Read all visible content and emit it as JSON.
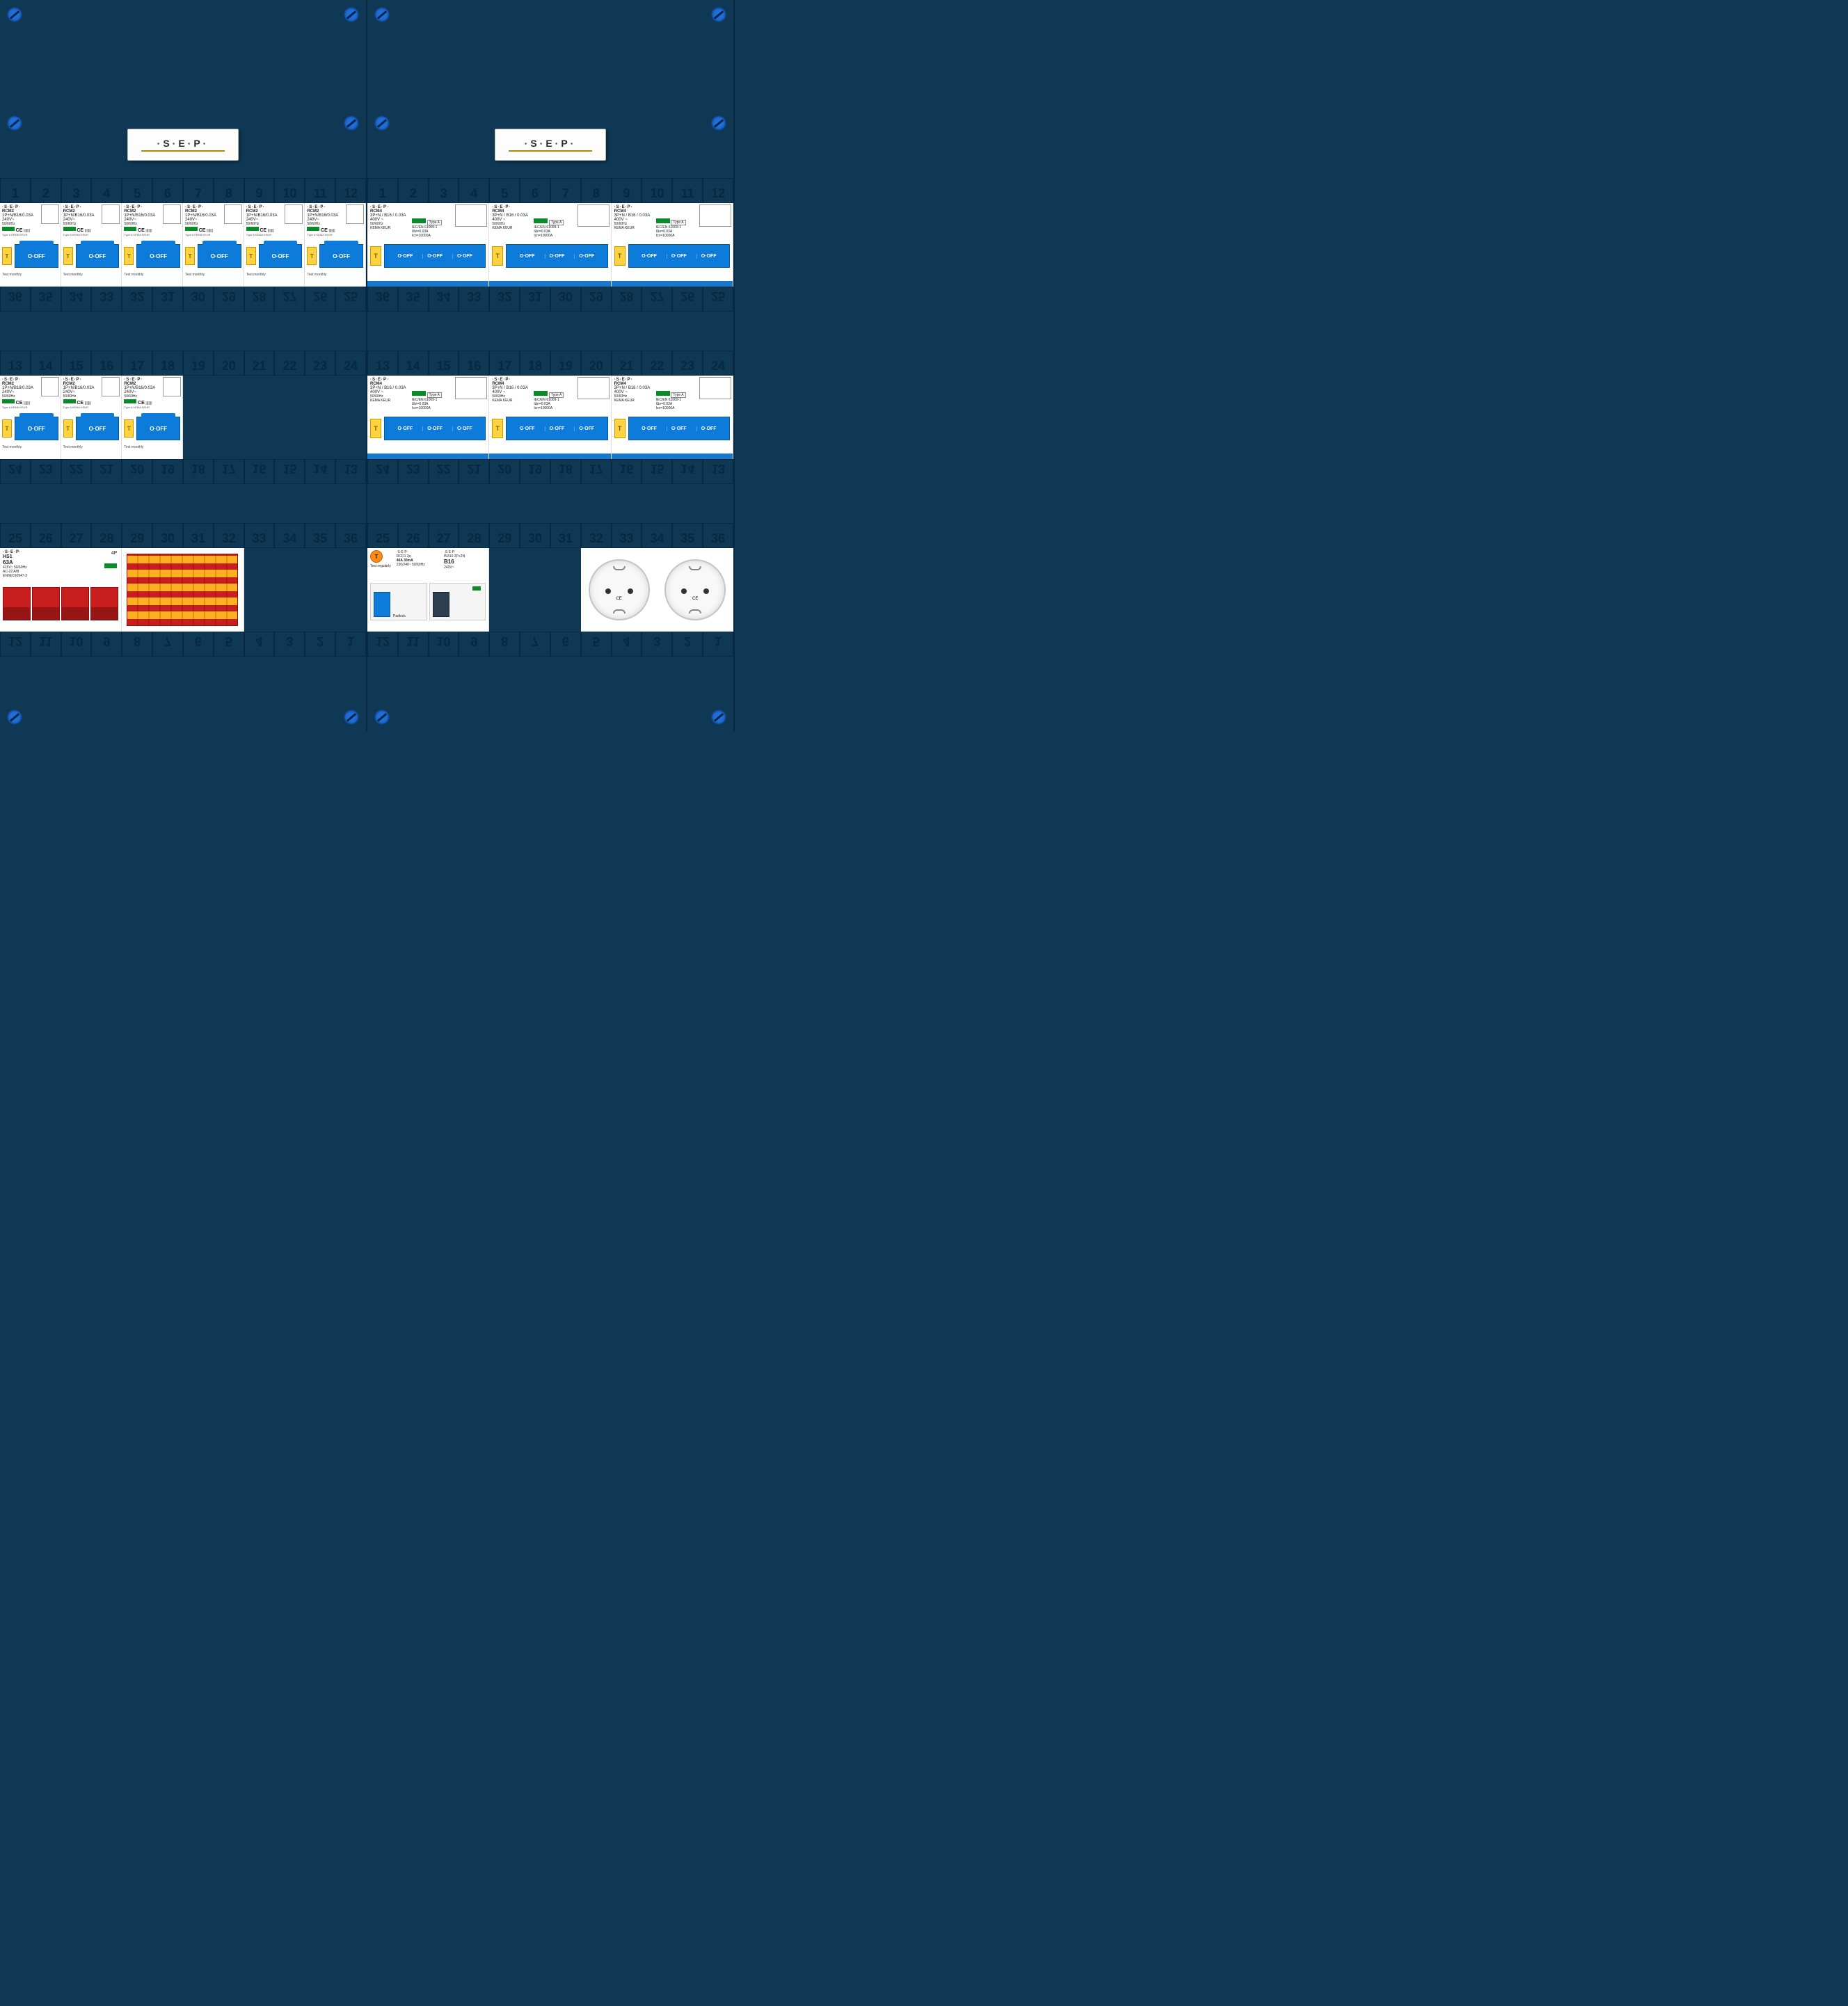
{
  "brand": {
    "label": "·S·E·P·"
  },
  "slots": [
    "1",
    "2",
    "3",
    "4",
    "5",
    "6",
    "7",
    "8",
    "9",
    "10",
    "11",
    "12"
  ],
  "slots_rev_25_36": [
    "36",
    "35",
    "34",
    "33",
    "32",
    "31",
    "30",
    "29",
    "28",
    "27",
    "26",
    "25"
  ],
  "slots_13_24": [
    "13",
    "14",
    "15",
    "16",
    "17",
    "18",
    "19",
    "20",
    "21",
    "22",
    "23",
    "24"
  ],
  "slots_rev_13_24": [
    "24",
    "23",
    "22",
    "21",
    "20",
    "19",
    "18",
    "17",
    "16",
    "15",
    "14",
    "13"
  ],
  "slots_25_36": [
    "25",
    "26",
    "27",
    "28",
    "29",
    "30",
    "31",
    "32",
    "33",
    "34",
    "35",
    "36"
  ],
  "slots_rev_1_12": [
    "12",
    "11",
    "10",
    "9",
    "8",
    "7",
    "6",
    "5",
    "4",
    "3",
    "2",
    "1"
  ],
  "rcm2": {
    "sep": "·S·E·P·",
    "model": "RCM2",
    "spec": "1P+N/B16/0.03A",
    "voltage": "240V~",
    "freq": "50/60Hz",
    "ce": "CE",
    "barcode": "|||||||",
    "badges": "Type A  KEMA KEUR",
    "test_btn": "T",
    "lever": "O·OFF",
    "test_txt": "Test  monthly"
  },
  "rcm4": {
    "sep": "·S·E·P·",
    "model": "RCM4",
    "spec": "3P+N / B16 / 0.03A",
    "voltage": "400V ~",
    "freq": "50/60Hz",
    "cert": "KEMA KEUR",
    "type": "Type A",
    "iec": "IEC/EN 61009-1",
    "idn": "IΔn=0.03A",
    "icn": "Icn=10000A",
    "test_btn": "T",
    "lever": "O·OFF"
  },
  "hs1": {
    "sep": "·S·E·P·",
    "model": "HS1",
    "rating": "63A",
    "voltage": "415V~  50/60Hz",
    "std": "AC-22 A/B",
    "iec": "EN/IEC60947-3",
    "poles": "4P"
  },
  "rcd": {
    "sep": "·S·E·P·",
    "rcd_label": "RCD1    2p",
    "rcd_spec": "40A    30mA",
    "rcd_vf": "230/240~ 50/60Hz",
    "mcb_label": "IN310    2P+2N",
    "mcb_curve": "B16",
    "mcb_v": "240V~",
    "test_btn": "T",
    "test_txt": "Test regularly",
    "padlock": "Padlock"
  },
  "socket_ce": "CE",
  "colors": {
    "panel_bg": "#0f3854",
    "screw": "#1e6fd9",
    "lever_blue": "#0d7bd9",
    "test_yellow": "#ffd23f",
    "indicator_green": "#0a8a2a",
    "lever_red": "#c81e1e",
    "busbar_orange": "#ffb020",
    "rcd_orange": "#ff8c1a"
  }
}
